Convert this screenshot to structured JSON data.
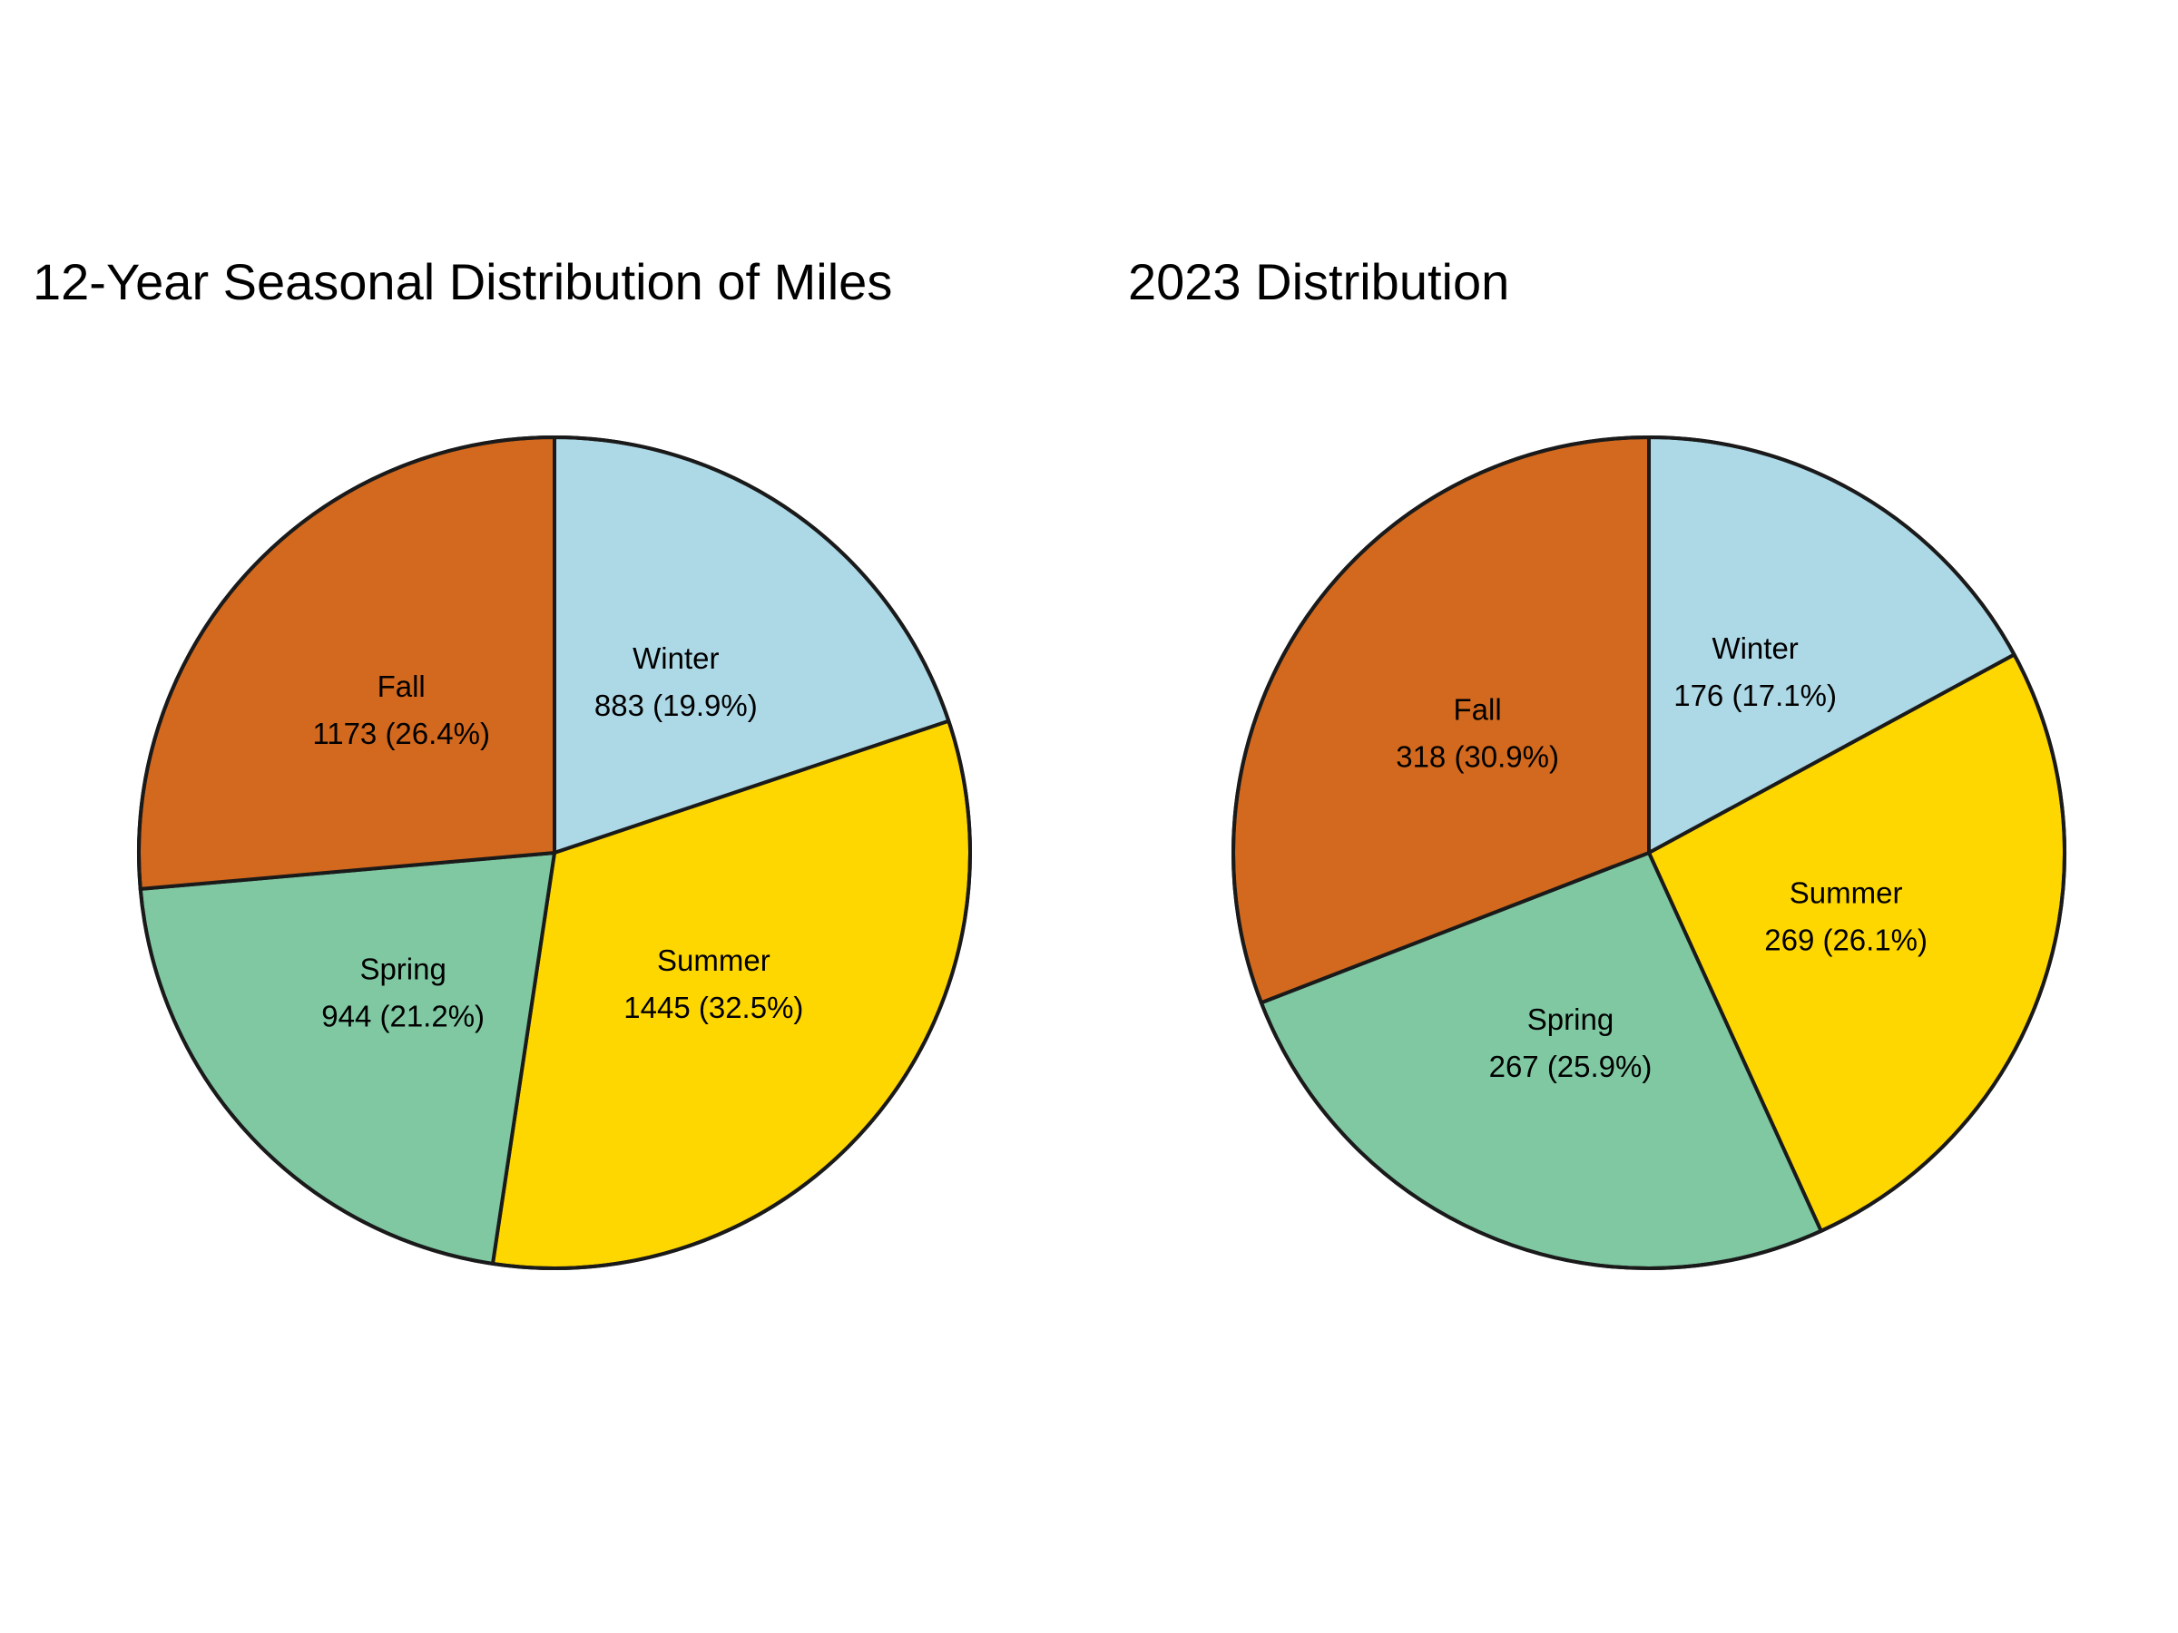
{
  "chart_data": [
    {
      "type": "pie",
      "title": "12-Year Seasonal Distribution of Miles",
      "start_angle_deg": 90,
      "direction": "clockwise",
      "slices": [
        {
          "label": "Winter",
          "value": 883,
          "percent": "19.9%",
          "value_text": "883 (19.9%)",
          "color": "#ADD8E6"
        },
        {
          "label": "Summer",
          "value": 1445,
          "percent": "32.5%",
          "value_text": "1445 (32.5%)",
          "color": "#FFD700"
        },
        {
          "label": "Spring",
          "value": 944,
          "percent": "21.2%",
          "value_text": "944 (21.2%)",
          "color": "#7FC8A2"
        },
        {
          "label": "Fall",
          "value": 1173,
          "percent": "26.4%",
          "value_text": "1173 (26.4%)",
          "color": "#D2691E"
        }
      ]
    },
    {
      "type": "pie",
      "title": "2023 Distribution",
      "start_angle_deg": 90,
      "direction": "clockwise",
      "slices": [
        {
          "label": "Winter",
          "value": 176,
          "percent": "17.1%",
          "value_text": "176 (17.1%)",
          "color": "#ADD8E6"
        },
        {
          "label": "Summer",
          "value": 269,
          "percent": "26.1%",
          "value_text": "269 (26.1%)",
          "color": "#FFD700"
        },
        {
          "label": "Spring",
          "value": 267,
          "percent": "25.9%",
          "value_text": "267 (25.9%)",
          "color": "#7FC8A2"
        },
        {
          "label": "Fall",
          "value": 318,
          "percent": "30.9%",
          "value_text": "318 (30.9%)",
          "color": "#D2691E"
        }
      ]
    }
  ]
}
